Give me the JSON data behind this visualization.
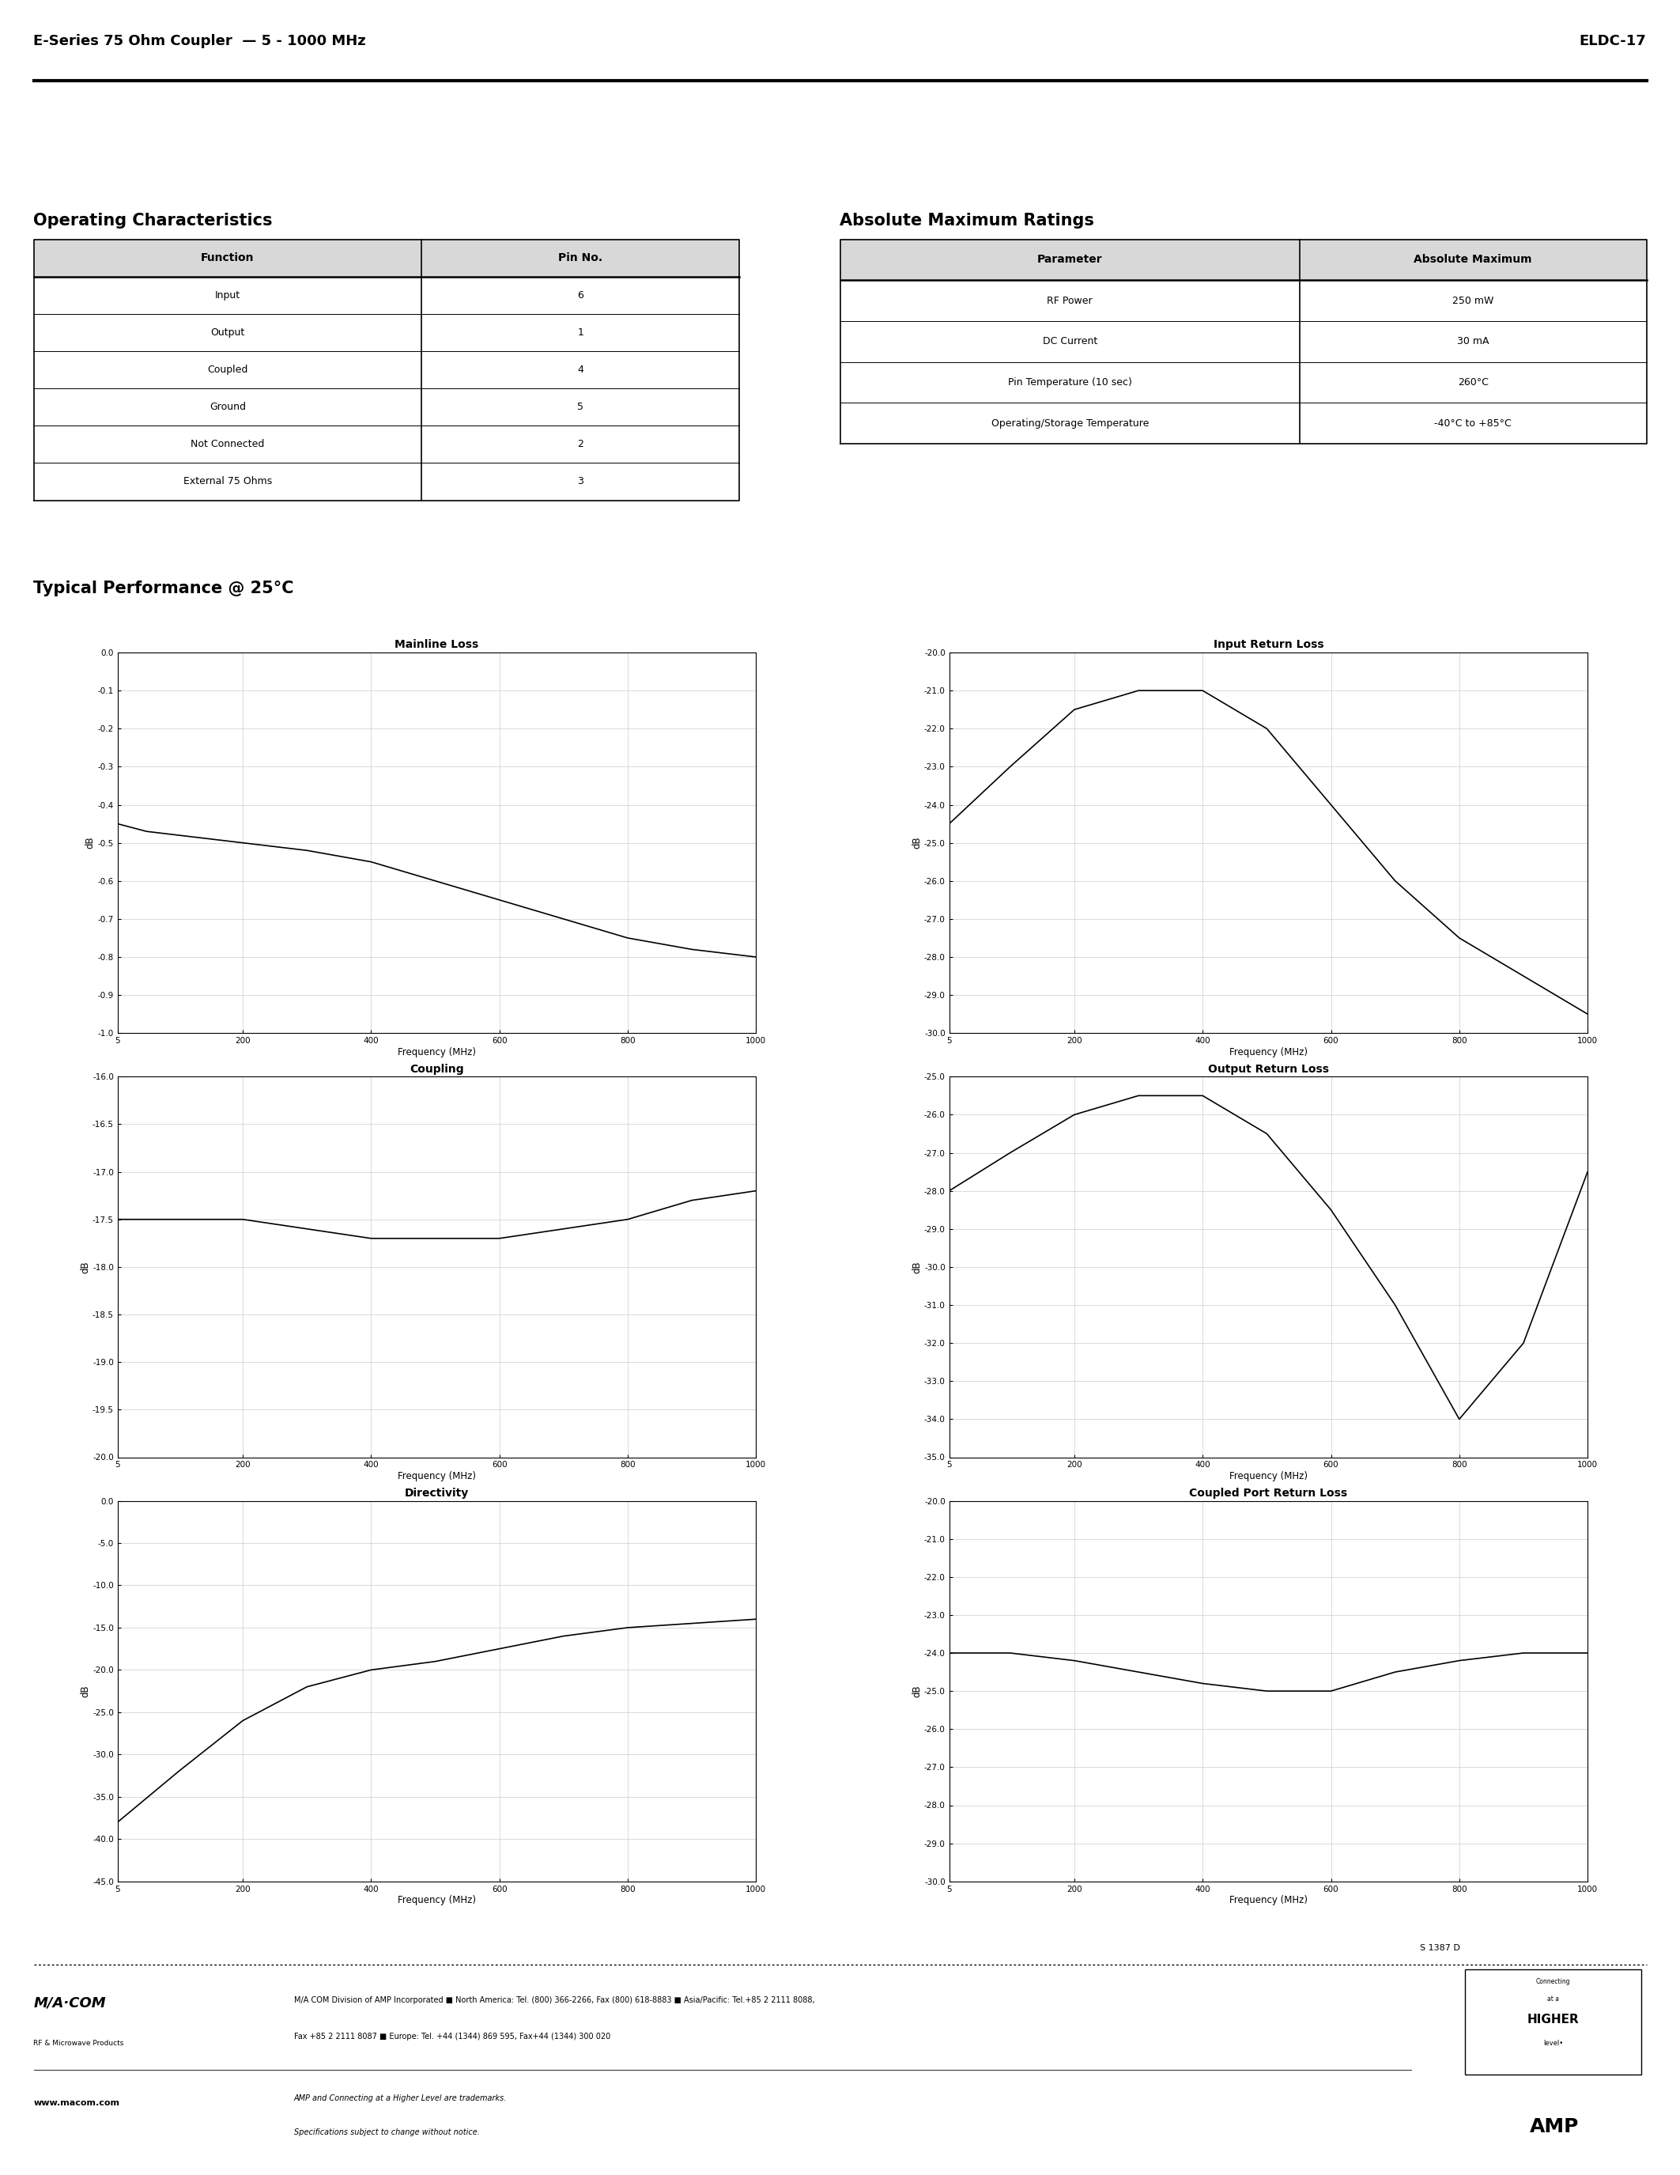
{
  "header_left": "E-Series 75 Ohm Coupler  — 5 - 1000 MHz",
  "header_right": "ELDC-17",
  "section1_title": "Operating Characteristics",
  "section2_title": "Absolute Maximum Ratings",
  "op_char_headers": [
    "Function",
    "Pin No."
  ],
  "op_char_rows": [
    [
      "Input",
      "6"
    ],
    [
      "Output",
      "1"
    ],
    [
      "Coupled",
      "4"
    ],
    [
      "Ground",
      "5"
    ],
    [
      "Not Connected",
      "2"
    ],
    [
      "External 75 Ohms",
      "3"
    ]
  ],
  "abs_max_headers": [
    "Parameter",
    "Absolute Maximum"
  ],
  "abs_max_rows": [
    [
      "RF Power",
      "250 mW"
    ],
    [
      "DC Current",
      "30 mA"
    ],
    [
      "Pin Temperature (10 sec)",
      "260°C"
    ],
    [
      "Operating/Storage Temperature",
      "-40°C to +85°C"
    ]
  ],
  "perf_title": "Typical Performance @ 25°C",
  "graphs": [
    {
      "title": "Mainline Loss",
      "ylabel": "dB",
      "xlabel": "Frequency (MHz)",
      "ylim": [
        -1.0,
        0.0
      ],
      "yticks": [
        0.0,
        -0.1,
        -0.2,
        -0.3,
        -0.4,
        -0.5,
        -0.6,
        -0.7,
        -0.8,
        -0.9,
        -1.0
      ],
      "xlim": [
        5,
        1000
      ],
      "xticks": [
        5,
        200,
        400,
        600,
        800,
        1000
      ],
      "data_x": [
        5,
        50,
        100,
        200,
        300,
        400,
        500,
        600,
        700,
        800,
        900,
        1000
      ],
      "data_y": [
        -0.45,
        -0.47,
        -0.48,
        -0.5,
        -0.52,
        -0.55,
        -0.6,
        -0.65,
        -0.7,
        -0.75,
        -0.78,
        -0.8
      ]
    },
    {
      "title": "Input Return Loss",
      "ylabel": "dB",
      "xlabel": "Frequency (MHz)",
      "ylim": [
        -30.0,
        -20.0
      ],
      "yticks": [
        -20.0,
        -21.0,
        -22.0,
        -23.0,
        -24.0,
        -25.0,
        -26.0,
        -27.0,
        -28.0,
        -29.0,
        -30.0
      ],
      "xlim": [
        5,
        1000
      ],
      "xticks": [
        5,
        200,
        400,
        600,
        800,
        1000
      ],
      "data_x": [
        5,
        100,
        200,
        300,
        400,
        500,
        600,
        700,
        800,
        900,
        1000
      ],
      "data_y": [
        -24.5,
        -23.0,
        -21.5,
        -21.0,
        -21.0,
        -22.0,
        -24.0,
        -26.0,
        -27.5,
        -28.5,
        -29.5
      ]
    },
    {
      "title": "Coupling",
      "ylabel": "dB",
      "xlabel": "Frequency (MHz)",
      "ylim": [
        -20.0,
        -16.0
      ],
      "yticks": [
        -16.0,
        -16.5,
        -17.0,
        -17.5,
        -18.0,
        -18.5,
        -19.0,
        -19.5,
        -20.0
      ],
      "xlim": [
        5,
        1000
      ],
      "xticks": [
        5,
        200,
        400,
        600,
        800,
        1000
      ],
      "data_x": [
        5,
        100,
        200,
        300,
        400,
        500,
        600,
        700,
        800,
        900,
        1000
      ],
      "data_y": [
        -17.5,
        -17.5,
        -17.5,
        -17.6,
        -17.7,
        -17.7,
        -17.7,
        -17.6,
        -17.5,
        -17.3,
        -17.2
      ]
    },
    {
      "title": "Output Return Loss",
      "ylabel": "dB",
      "xlabel": "Frequency (MHz)",
      "ylim": [
        -35.0,
        -25.0
      ],
      "yticks": [
        -25.0,
        -26.0,
        -27.0,
        -28.0,
        -29.0,
        -30.0,
        -31.0,
        -32.0,
        -33.0,
        -34.0,
        -35.0
      ],
      "xlim": [
        5,
        1000
      ],
      "xticks": [
        5,
        200,
        400,
        600,
        800,
        1000
      ],
      "data_x": [
        5,
        100,
        200,
        300,
        400,
        500,
        600,
        700,
        800,
        900,
        1000
      ],
      "data_y": [
        -28.0,
        -27.0,
        -26.0,
        -25.5,
        -25.5,
        -26.5,
        -28.5,
        -31.0,
        -34.0,
        -32.0,
        -27.5
      ]
    },
    {
      "title": "Directivity",
      "ylabel": "dB",
      "xlabel": "Frequency (MHz)",
      "ylim": [
        -45.0,
        0.0
      ],
      "yticks": [
        0.0,
        -5.0,
        -10.0,
        -15.0,
        -20.0,
        -25.0,
        -30.0,
        -35.0,
        -40.0,
        -45.0
      ],
      "xlim": [
        5,
        1000
      ],
      "xticks": [
        5,
        200,
        400,
        600,
        800,
        1000
      ],
      "data_x": [
        5,
        100,
        200,
        300,
        400,
        500,
        600,
        700,
        800,
        900,
        1000
      ],
      "data_y": [
        -38.0,
        -32.0,
        -26.0,
        -22.0,
        -20.0,
        -19.0,
        -17.5,
        -16.0,
        -15.0,
        -14.5,
        -14.0
      ]
    },
    {
      "title": "Coupled Port Return Loss",
      "ylabel": "dB",
      "xlabel": "Frequency (MHz)",
      "ylim": [
        -30.0,
        -20.0
      ],
      "yticks": [
        -20.0,
        -21.0,
        -22.0,
        -23.0,
        -24.0,
        -25.0,
        -26.0,
        -27.0,
        -28.0,
        -29.0,
        -30.0
      ],
      "xlim": [
        5,
        1000
      ],
      "xticks": [
        5,
        200,
        400,
        600,
        800,
        1000
      ],
      "data_x": [
        5,
        100,
        200,
        300,
        400,
        500,
        600,
        700,
        800,
        900,
        1000
      ],
      "data_y": [
        -24.0,
        -24.0,
        -24.2,
        -24.5,
        -24.8,
        -25.0,
        -25.0,
        -24.5,
        -24.2,
        -24.0,
        -24.0
      ]
    }
  ],
  "footer_text1": "M/A COM Division of AMP Incorporated ■ North America: Tel. (800) 366-2266, Fax (800) 618-8883 ■ Asia/Pacific: Tel.+85 2 2111 8088,",
  "footer_text2": "Fax +85 2 2111 8087 ■ Europe: Tel. +44 (1344) 869 595, Fax+44 (1344) 300 020",
  "footer_url": "www.macom.com",
  "footer_trademark": "AMP and Connecting at a Higher Level are trademarks.",
  "footer_spec": "Specifications subject to change without notice.",
  "footer_code": "S 1387 D"
}
